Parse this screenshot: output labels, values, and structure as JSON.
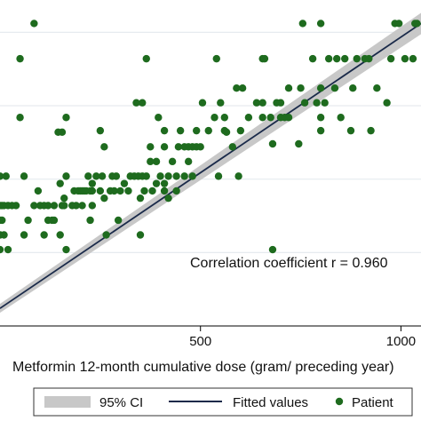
{
  "chart_data": {
    "type": "scatter",
    "xlabel": "Metformin 12-month cumulative dose (gram/ preceding year)",
    "xticks": [
      500,
      1000
    ],
    "xlim": [
      0,
      1050
    ],
    "ylim": [
      0,
      1110
    ],
    "grid": "horizontal",
    "annotation": "Correlation coefficient r = 0.960",
    "fit": {
      "x": [
        0,
        1050
      ],
      "y": [
        60,
        1030
      ]
    },
    "legend": {
      "placement": "bottom",
      "items": [
        {
          "label": "95% CI",
          "color": "#c8c8c8"
        },
        {
          "label": "Fitted values",
          "color": "#1a2a4a"
        },
        {
          "label": "Patient",
          "color": "#1e6b1e"
        }
      ]
    },
    "series": [
      {
        "name": "Patient",
        "color": "#1e6b1e",
        "points": [
          [
            85,
            1030
          ],
          [
            755,
            1030
          ],
          [
            800,
            1030
          ],
          [
            985,
            1030
          ],
          [
            995,
            1030
          ],
          [
            1035,
            1030
          ],
          [
            1040,
            1030
          ],
          [
            50,
            910
          ],
          [
            365,
            910
          ],
          [
            540,
            910
          ],
          [
            655,
            910
          ],
          [
            660,
            910
          ],
          [
            780,
            910
          ],
          [
            820,
            910
          ],
          [
            840,
            910
          ],
          [
            860,
            910
          ],
          [
            890,
            910
          ],
          [
            910,
            910
          ],
          [
            920,
            910
          ],
          [
            975,
            910
          ],
          [
            1010,
            910
          ],
          [
            1030,
            910
          ],
          [
            590,
            810
          ],
          [
            605,
            810
          ],
          [
            720,
            810
          ],
          [
            750,
            810
          ],
          [
            800,
            810
          ],
          [
            835,
            810
          ],
          [
            880,
            810
          ],
          [
            940,
            810
          ],
          [
            340,
            760
          ],
          [
            355,
            760
          ],
          [
            505,
            760
          ],
          [
            550,
            760
          ],
          [
            640,
            760
          ],
          [
            655,
            760
          ],
          [
            690,
            760
          ],
          [
            700,
            760
          ],
          [
            760,
            760
          ],
          [
            790,
            760
          ],
          [
            810,
            760
          ],
          [
            965,
            760
          ],
          [
            50,
            710
          ],
          [
            165,
            710
          ],
          [
            395,
            710
          ],
          [
            535,
            710
          ],
          [
            560,
            710
          ],
          [
            620,
            710
          ],
          [
            655,
            710
          ],
          [
            675,
            710
          ],
          [
            700,
            710
          ],
          [
            710,
            710
          ],
          [
            720,
            710
          ],
          [
            800,
            710
          ],
          [
            850,
            710
          ],
          [
            250,
            665
          ],
          [
            410,
            665
          ],
          [
            450,
            665
          ],
          [
            490,
            665
          ],
          [
            520,
            665
          ],
          [
            560,
            665
          ],
          [
            600,
            665
          ],
          [
            800,
            665
          ],
          [
            875,
            665
          ],
          [
            925,
            665
          ],
          [
            145,
            660
          ],
          [
            155,
            660
          ],
          [
            565,
            660
          ],
          [
            680,
            620
          ],
          [
            745,
            620
          ],
          [
            260,
            610
          ],
          [
            375,
            610
          ],
          [
            410,
            610
          ],
          [
            445,
            610
          ],
          [
            460,
            610
          ],
          [
            470,
            610
          ],
          [
            480,
            610
          ],
          [
            490,
            610
          ],
          [
            500,
            610
          ],
          [
            580,
            610
          ],
          [
            375,
            560
          ],
          [
            390,
            560
          ],
          [
            430,
            560
          ],
          [
            470,
            560
          ],
          [
            0,
            510
          ],
          [
            15,
            510
          ],
          [
            60,
            510
          ],
          [
            165,
            510
          ],
          [
            220,
            510
          ],
          [
            240,
            510
          ],
          [
            255,
            510
          ],
          [
            280,
            510
          ],
          [
            290,
            510
          ],
          [
            325,
            510
          ],
          [
            335,
            510
          ],
          [
            345,
            510
          ],
          [
            355,
            510
          ],
          [
            365,
            510
          ],
          [
            400,
            510
          ],
          [
            420,
            510
          ],
          [
            440,
            510
          ],
          [
            460,
            510
          ],
          [
            480,
            510
          ],
          [
            545,
            510
          ],
          [
            595,
            510
          ],
          [
            150,
            485
          ],
          [
            230,
            485
          ],
          [
            310,
            485
          ],
          [
            390,
            485
          ],
          [
            410,
            485
          ],
          [
            95,
            460
          ],
          [
            185,
            460
          ],
          [
            195,
            460
          ],
          [
            200,
            460
          ],
          [
            205,
            460
          ],
          [
            210,
            460
          ],
          [
            215,
            460
          ],
          [
            225,
            460
          ],
          [
            230,
            460
          ],
          [
            250,
            460
          ],
          [
            275,
            460
          ],
          [
            285,
            460
          ],
          [
            300,
            460
          ],
          [
            320,
            460
          ],
          [
            360,
            460
          ],
          [
            380,
            460
          ],
          [
            410,
            460
          ],
          [
            440,
            460
          ],
          [
            160,
            435
          ],
          [
            260,
            435
          ],
          [
            350,
            435
          ],
          [
            420,
            435
          ],
          [
            0,
            410
          ],
          [
            5,
            410
          ],
          [
            10,
            410
          ],
          [
            20,
            410
          ],
          [
            30,
            410
          ],
          [
            40,
            410
          ],
          [
            85,
            410
          ],
          [
            100,
            410
          ],
          [
            110,
            410
          ],
          [
            120,
            410
          ],
          [
            135,
            410
          ],
          [
            155,
            410
          ],
          [
            160,
            410
          ],
          [
            180,
            410
          ],
          [
            190,
            410
          ],
          [
            205,
            410
          ],
          [
            230,
            410
          ],
          [
            0,
            360
          ],
          [
            5,
            360
          ],
          [
            70,
            360
          ],
          [
            120,
            360
          ],
          [
            130,
            360
          ],
          [
            135,
            360
          ],
          [
            225,
            360
          ],
          [
            295,
            360
          ],
          [
            0,
            310
          ],
          [
            10,
            310
          ],
          [
            60,
            310
          ],
          [
            110,
            310
          ],
          [
            150,
            310
          ],
          [
            265,
            310
          ],
          [
            350,
            310
          ],
          [
            0,
            260
          ],
          [
            20,
            260
          ],
          [
            165,
            260
          ],
          [
            680,
            260
          ]
        ]
      }
    ]
  }
}
